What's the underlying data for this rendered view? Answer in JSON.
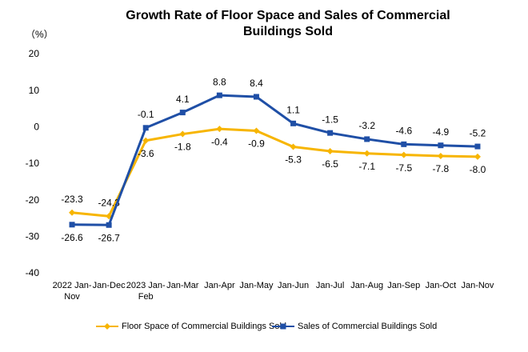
{
  "chart_data": {
    "type": "line",
    "title": "Growth Rate of Floor Space and Sales of Commercial Buildings Sold",
    "y_axis_label": "（%）",
    "categories": [
      "2022 Jan-Nov",
      "Jan-Dec",
      "2023 Jan-Feb",
      "Jan-Mar",
      "Jan-Apr",
      "Jan-May",
      "Jan-Jun",
      "Jan-Jul",
      "Jan-Aug",
      "Jan-Sep",
      "Jan-Oct",
      "Jan-Nov"
    ],
    "series": [
      {
        "name": "Floor Space of Commercial Buildings Sold",
        "color": "#f7b500",
        "marker": "diamond",
        "values": [
          -23.3,
          -24.3,
          -3.6,
          -1.8,
          -0.4,
          -0.9,
          -5.3,
          -6.5,
          -7.1,
          -7.5,
          -7.8,
          -8.0
        ],
        "value_labels": [
          "-23.3",
          "-24.3",
          "-3.6",
          "-1.8",
          "-0.4",
          "-0.9",
          "-5.3",
          "-6.5",
          "-7.1",
          "-7.5",
          "-7.8",
          "-8.0"
        ]
      },
      {
        "name": "Sales of Commercial Buildings Sold",
        "color": "#1f4fa6",
        "marker": "square",
        "values": [
          -26.6,
          -26.7,
          -0.1,
          4.1,
          8.8,
          8.4,
          1.1,
          -1.5,
          -3.2,
          -4.6,
          -4.9,
          -5.2
        ]
      }
    ],
    "ylim": [
      -40,
      20
    ],
    "yticks": [
      -40,
      -30,
      -20,
      -10,
      0,
      10,
      20
    ],
    "grid": false,
    "legend": "bottom"
  }
}
